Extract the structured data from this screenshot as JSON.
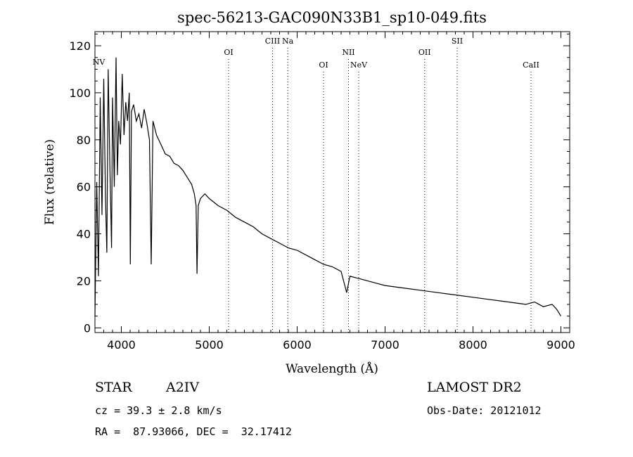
{
  "chart_data": {
    "type": "line",
    "title": "spec-56213-GAC090N33B1_sp10-049.fits",
    "xlabel": "Wavelength (Å)",
    "ylabel": "Flux (relative)",
    "xlim": [
      3700,
      9100
    ],
    "ylim": [
      -2,
      126
    ],
    "x_ticks": [
      4000,
      5000,
      6000,
      7000,
      8000,
      9000
    ],
    "y_ticks": [
      0,
      20,
      40,
      60,
      80,
      100,
      120
    ],
    "grid": false,
    "series": [
      {
        "x": [
          3700,
          3720,
          3740,
          3760,
          3780,
          3800,
          3820,
          3835,
          3850,
          3870,
          3889,
          3900,
          3920,
          3940,
          3955,
          3970,
          3990,
          4010,
          4030,
          4050,
          4070,
          4090,
          4102,
          4115,
          4140,
          4170,
          4200,
          4230,
          4260,
          4290,
          4320,
          4340,
          4360,
          4400,
          4450,
          4500,
          4550,
          4600,
          4650,
          4700,
          4750,
          4800,
          4830,
          4850,
          4861,
          4875,
          4900,
          4950,
          5000,
          5100,
          5200,
          5300,
          5400,
          5500,
          5600,
          5700,
          5800,
          5900,
          6000,
          6100,
          6200,
          6300,
          6400,
          6500,
          6563,
          6600,
          6700,
          6800,
          6900,
          7000,
          7200,
          7400,
          7600,
          7800,
          8000,
          8200,
          8400,
          8600,
          8700,
          8800,
          8900,
          8950,
          9000
        ],
        "y": [
          5,
          62,
          22,
          98,
          48,
          106,
          55,
          32,
          110,
          68,
          34,
          98,
          60,
          115,
          65,
          88,
          78,
          108,
          82,
          96,
          88,
          100,
          27,
          92,
          95,
          88,
          91,
          85,
          93,
          87,
          80,
          27,
          88,
          82,
          78,
          74,
          73,
          70,
          69,
          67,
          64,
          61,
          57,
          52,
          23,
          52,
          55,
          57,
          55,
          52,
          50,
          47,
          45,
          43,
          40,
          38,
          36,
          34,
          33,
          31,
          29,
          27,
          26,
          24,
          15,
          22,
          21,
          20,
          19,
          18,
          17,
          16,
          15,
          14,
          13,
          12,
          11,
          10,
          11,
          9,
          10,
          8,
          5
        ]
      }
    ],
    "spectral_lines": [
      {
        "label": "NV",
        "wavelength": 3720
      },
      {
        "label": "OI",
        "wavelength": 5220
      },
      {
        "label": "CIII",
        "wavelength": 5720
      },
      {
        "label": "Na",
        "wavelength": 5893
      },
      {
        "label": "OI",
        "wavelength": 6300
      },
      {
        "label": "NII",
        "wavelength": 6584
      },
      {
        "label": "NeV",
        "wavelength": 6700
      },
      {
        "label": "OII",
        "wavelength": 7450
      },
      {
        "label": "SII",
        "wavelength": 7820
      },
      {
        "label": "CaII",
        "wavelength": 8660
      }
    ]
  },
  "info": {
    "object_class": "STAR",
    "subclass": "A2IV",
    "survey": "LAMOST DR2",
    "redshift": "cz = 39.3 ± 2.8 km/s",
    "obs_date": "Obs-Date: 20121012",
    "coordinates": "RA =  87.93066, DEC =  32.17412"
  }
}
